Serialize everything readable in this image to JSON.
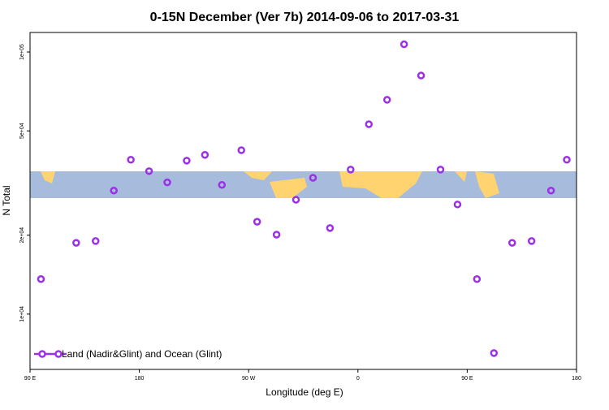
{
  "chart_data": {
    "type": "scatter",
    "title": "0-15N December (Ver 7b)   2014-09-06 to 2017-03-31",
    "x_label": "Longitude (deg E)",
    "y_label": "N Total",
    "log_y": true,
    "xlim": [
      90,
      540
    ],
    "xticks": [
      {
        "value": 90,
        "label": "90 E"
      },
      {
        "value": 180,
        "label": "180"
      },
      {
        "value": 270,
        "label": "90 W"
      },
      {
        "value": 360,
        "label": "0"
      },
      {
        "value": 450,
        "label": "90 E"
      },
      {
        "value": 540,
        "label": "180"
      }
    ],
    "ylim": [
      6150,
      118700
    ],
    "yticks": [
      {
        "value": 10000,
        "label": "1e+04"
      },
      {
        "value": 20000,
        "label": "2e+04"
      },
      {
        "value": 50000,
        "label": "5e+04"
      },
      {
        "value": 100000,
        "label": "1e+05"
      }
    ],
    "legend": "bottom-left",
    "series": [
      {
        "name": "Land (Nadir&Glint) and Ocean (Glint)",
        "color": "#9b30e8",
        "x": [
          99,
          128,
          144,
          159,
          173,
          188,
          203,
          219,
          234,
          248,
          264,
          277,
          293,
          309,
          323,
          337,
          354,
          369,
          384,
          398,
          412,
          428,
          442,
          458,
          472,
          487,
          503,
          519,
          532
        ],
        "values": [
          13600,
          18700,
          19000,
          29600,
          38800,
          35100,
          31800,
          38500,
          40500,
          31100,
          42200,
          22500,
          20100,
          27300,
          33100,
          21300,
          35600,
          53000,
          65700,
          107000,
          81300,
          35600,
          26200,
          13600,
          7100,
          18700,
          19000,
          29600,
          38800
        ]
      }
    ]
  }
}
